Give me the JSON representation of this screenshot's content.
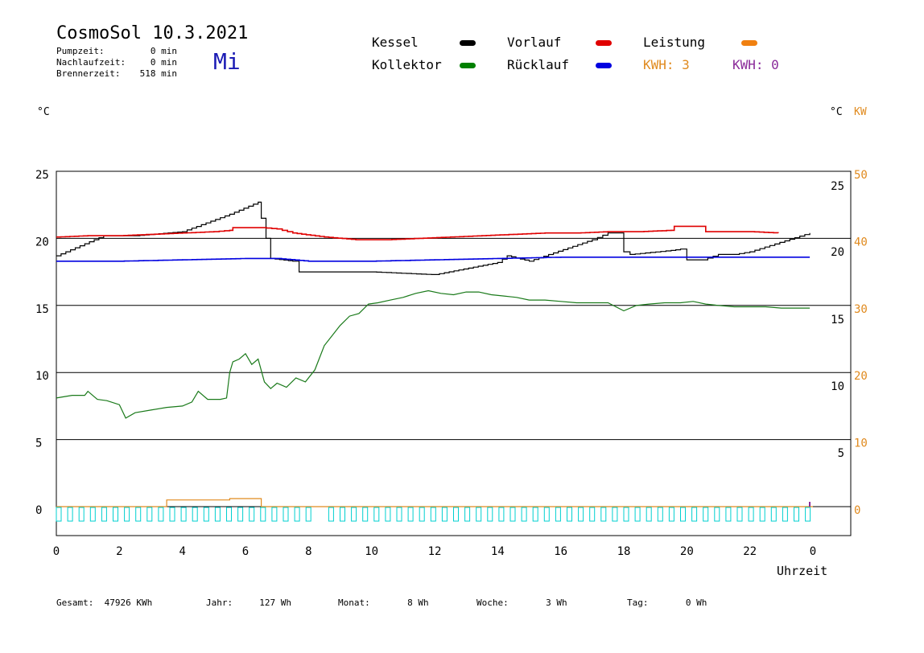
{
  "header": {
    "title": "CosmoSol 10.3.2021",
    "weekday": "Mi",
    "stats": [
      {
        "label": "Pumpzeit:",
        "value": "0 min"
      },
      {
        "label": "Nachlaufzeit:",
        "value": "0 min"
      },
      {
        "label": "Brennerzeit:",
        "value": "518 min"
      }
    ]
  },
  "legend": {
    "kessel": {
      "label": "Kessel",
      "color": "#000000"
    },
    "vorlauf": {
      "label": "Vorlauf",
      "color": "#e00000"
    },
    "leistung": {
      "label": "Leistung",
      "color": "#f08010"
    },
    "kollektor": {
      "label": "Kollektor",
      "color": "#008000"
    },
    "ruecklauf": {
      "label": "Rücklauf",
      "color": "#0000e0"
    },
    "kwh_orange": "KWH: 3",
    "kwh_purple": "KWH: 0"
  },
  "colors": {
    "orange": "#e08a1e",
    "purple": "#8a2a9a",
    "cyan": "#00d0d0",
    "kessel": "#000000",
    "vorlauf": "#e00000",
    "kollektor": "#1a7a1a",
    "ruecklauf": "#0000e0"
  },
  "axes": {
    "left_unit": "°C",
    "right_unit_c": "°C",
    "right_unit_kw": "KW",
    "x_label": "Uhrzeit"
  },
  "footer": [
    {
      "label": "Gesamt:",
      "value": "47926 KWh"
    },
    {
      "label": "Jahr:",
      "value": "127 Wh"
    },
    {
      "label": "Monat:",
      "value": "8 Wh"
    },
    {
      "label": "Woche:",
      "value": "3 Wh"
    },
    {
      "label": "Tag:",
      "value": "0 Wh"
    }
  ],
  "chart_data": {
    "type": "line",
    "xlabel": "Uhrzeit",
    "x_ticks": [
      "0",
      "2",
      "4",
      "6",
      "8",
      "10",
      "12",
      "14",
      "16",
      "18",
      "20",
      "22",
      "0"
    ],
    "y_left_ticks": [
      "25",
      "20",
      "15",
      "10",
      "5",
      "0"
    ],
    "y_right_c_ticks": [
      "25",
      "20",
      "15",
      "10",
      "5"
    ],
    "y_right_kw_ticks": [
      "50",
      "40",
      "30",
      "20",
      "10",
      "0"
    ],
    "xlim": [
      0,
      24
    ],
    "ylim": [
      -2,
      25.5
    ],
    "grid": true,
    "series": [
      {
        "name": "Kessel",
        "key": "kessel",
        "x": [
          0,
          1.5,
          2.5,
          4,
          5.5,
          6.4,
          6.5,
          6.8,
          7.5,
          7.7,
          8,
          10,
          11.9,
          12,
          14,
          14.3,
          15,
          17,
          17.5,
          17.9,
          18,
          18.2,
          19.5,
          19.8,
          20.0,
          20.5,
          21,
          21.5,
          22,
          23.9
        ],
        "y": [
          18.7,
          20.2,
          20.2,
          20.5,
          21.8,
          22.7,
          21.5,
          18.5,
          18.3,
          17.5,
          17.5,
          17.5,
          17.3,
          17.3,
          18.2,
          18.7,
          18.3,
          19.9,
          20.4,
          20.4,
          19.0,
          18.8,
          19.1,
          19.2,
          18.4,
          18.4,
          18.8,
          18.8,
          19.0,
          20.4
        ]
      },
      {
        "name": "Vorlauf",
        "key": "vorlauf",
        "x": [
          0,
          1.0,
          2.0,
          3.0,
          4.0,
          5.0,
          5.5,
          5.6,
          6.5,
          7.0,
          7.5,
          8.5,
          9.5,
          10.5,
          11.5,
          12.5,
          13.5,
          14.5,
          15.5,
          16.5,
          17.5,
          18.5,
          19.5,
          19.6,
          20.5,
          20.6,
          22.0,
          22.9
        ],
        "y": [
          20.1,
          20.2,
          20.2,
          20.3,
          20.4,
          20.5,
          20.6,
          20.8,
          20.8,
          20.7,
          20.4,
          20.1,
          19.9,
          19.9,
          20.0,
          20.1,
          20.2,
          20.3,
          20.4,
          20.4,
          20.5,
          20.5,
          20.6,
          20.9,
          20.9,
          20.5,
          20.5,
          20.4
        ]
      },
      {
        "name": "Rücklauf",
        "key": "ruecklauf",
        "x": [
          0,
          2,
          4,
          6,
          7,
          8,
          10,
          12,
          14,
          16,
          18,
          20,
          22,
          23.9
        ],
        "y": [
          18.3,
          18.3,
          18.4,
          18.5,
          18.5,
          18.3,
          18.3,
          18.4,
          18.5,
          18.6,
          18.6,
          18.6,
          18.6,
          18.6
        ]
      },
      {
        "name": "Kollektor",
        "key": "kollektor",
        "x": [
          0,
          0.5,
          0.9,
          1.0,
          1.3,
          1.6,
          2.0,
          2.2,
          2.5,
          3.0,
          3.5,
          4.0,
          4.3,
          4.5,
          4.8,
          5.2,
          5.4,
          5.5,
          5.6,
          5.8,
          6.0,
          6.2,
          6.4,
          6.6,
          6.8,
          7.0,
          7.3,
          7.6,
          7.9,
          8.2,
          8.5,
          8.8,
          9.0,
          9.3,
          9.6,
          9.9,
          10.2,
          10.6,
          11.0,
          11.4,
          11.8,
          12.2,
          12.6,
          13.0,
          13.4,
          13.8,
          14.2,
          14.6,
          15.0,
          15.5,
          16.0,
          16.5,
          17.0,
          17.5,
          18.0,
          18.4,
          18.8,
          19.3,
          19.8,
          20.2,
          20.6,
          21.0,
          21.5,
          22.0,
          22.5,
          23.0,
          23.4,
          23.9
        ],
        "y": [
          8.1,
          8.3,
          8.3,
          8.6,
          8.0,
          7.9,
          7.6,
          6.6,
          7.0,
          7.2,
          7.4,
          7.5,
          7.8,
          8.6,
          8.0,
          8.0,
          8.1,
          10.0,
          10.8,
          11.0,
          11.4,
          10.6,
          11.0,
          9.3,
          8.8,
          9.2,
          8.9,
          9.6,
          9.3,
          10.2,
          12.0,
          12.9,
          13.5,
          14.2,
          14.4,
          15.1,
          15.2,
          15.4,
          15.6,
          15.9,
          16.1,
          15.9,
          15.8,
          16.0,
          16.0,
          15.8,
          15.7,
          15.6,
          15.4,
          15.4,
          15.3,
          15.2,
          15.2,
          15.2,
          14.6,
          15.0,
          15.1,
          15.2,
          15.2,
          15.3,
          15.1,
          15.0,
          14.9,
          14.9,
          14.9,
          14.8,
          14.8,
          14.8
        ]
      },
      {
        "name": "Leistung",
        "key": "leistung",
        "x": [
          0,
          3.5,
          3.5,
          5.5,
          5.5,
          6.5,
          6.5,
          24
        ],
        "y": [
          0,
          0,
          0.5,
          0.5,
          0.6,
          0.6,
          0,
          0
        ]
      }
    ]
  }
}
